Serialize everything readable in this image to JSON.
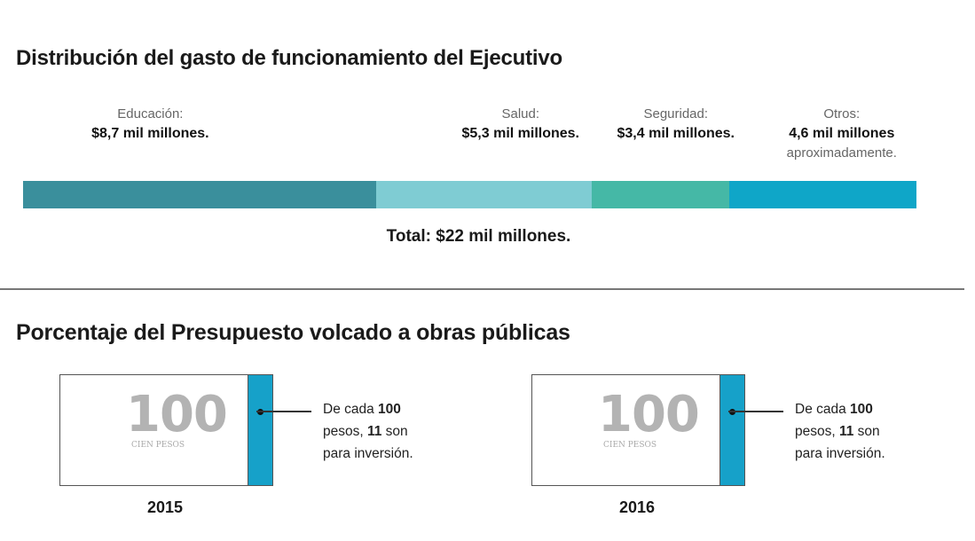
{
  "chart_data": [
    {
      "type": "bar",
      "orientation": "horizontal-stacked",
      "title": "Distribución del gasto de funcionamiento del Ejecutivo",
      "unit": "mil millones",
      "categories": [
        "Educación",
        "Salud",
        "Seguridad",
        "Otros"
      ],
      "values": [
        8.7,
        5.3,
        3.4,
        4.6
      ],
      "segments": [
        {
          "category": "Educación:",
          "value_label": "$8,7 mil millones.",
          "note": "",
          "color": "#3a8f9c"
        },
        {
          "category": "Salud:",
          "value_label": "$5,3 mil millones.",
          "note": "",
          "color": "#7fccd3"
        },
        {
          "category": "Seguridad:",
          "value_label": "$3,4 mil millones.",
          "note": "",
          "color": "#45b8a6"
        },
        {
          "category": "Otros:",
          "value_label": "4,6 mil millones",
          "note": "aproximadamente.",
          "color": "#0fa6c8"
        }
      ],
      "total_label": "Total: $22 mil millones."
    },
    {
      "type": "illustration",
      "title": "Porcentaje del Presupuesto volcado a obras públicas",
      "bill_number": "100",
      "bill_text": "CIEN PESOS",
      "stripe_color": "#16a1c9",
      "items": [
        {
          "year": "2015",
          "per": 100,
          "investment": 11,
          "text_pre": "De cada ",
          "bold1": "100",
          "text_mid": "pesos, ",
          "bold2": "11",
          "text_mid2": " son",
          "text_post": "para inversión."
        },
        {
          "year": "2016",
          "per": 100,
          "investment": 11,
          "text_pre": "De cada ",
          "bold1": "100",
          "text_mid": "pesos, ",
          "bold2": "11",
          "text_mid2": " son",
          "text_post": "para inversión."
        }
      ]
    }
  ]
}
